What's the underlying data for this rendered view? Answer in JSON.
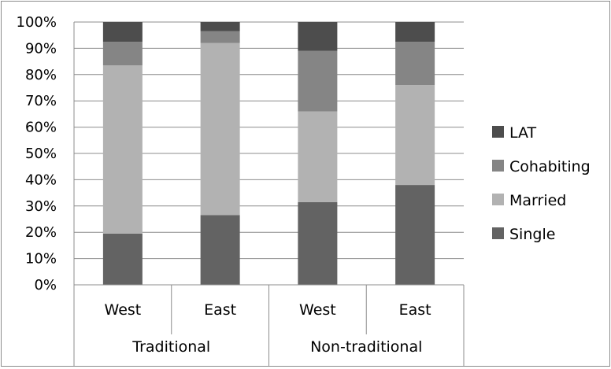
{
  "chart_data": {
    "type": "bar",
    "stacked": true,
    "percent": true,
    "categories": [
      "West",
      "East",
      "West",
      "East"
    ],
    "groups": [
      {
        "label": "Traditional",
        "members": [
          0,
          1
        ]
      },
      {
        "label": "Non-traditional",
        "members": [
          2,
          3
        ]
      }
    ],
    "series": [
      {
        "name": "Single",
        "values": [
          19.5,
          26.5,
          31.5,
          38
        ],
        "color": "#636363"
      },
      {
        "name": "Married",
        "values": [
          64,
          65.5,
          34.5,
          38
        ],
        "color": "#b2b2b2"
      },
      {
        "name": "Cohabiting",
        "values": [
          9,
          4.5,
          23,
          16.5
        ],
        "color": "#858585"
      },
      {
        "name": "LAT",
        "values": [
          7.5,
          3.5,
          11,
          7.5
        ],
        "color": "#4d4d4d"
      }
    ],
    "legend_order": [
      "LAT",
      "Cohabiting",
      "Married",
      "Single"
    ],
    "ylim": [
      0,
      100
    ],
    "yticks": [
      "0%",
      "10%",
      "20%",
      "30%",
      "40%",
      "50%",
      "60%",
      "70%",
      "80%",
      "90%",
      "100%"
    ],
    "grid": true,
    "legend_position": "right"
  }
}
